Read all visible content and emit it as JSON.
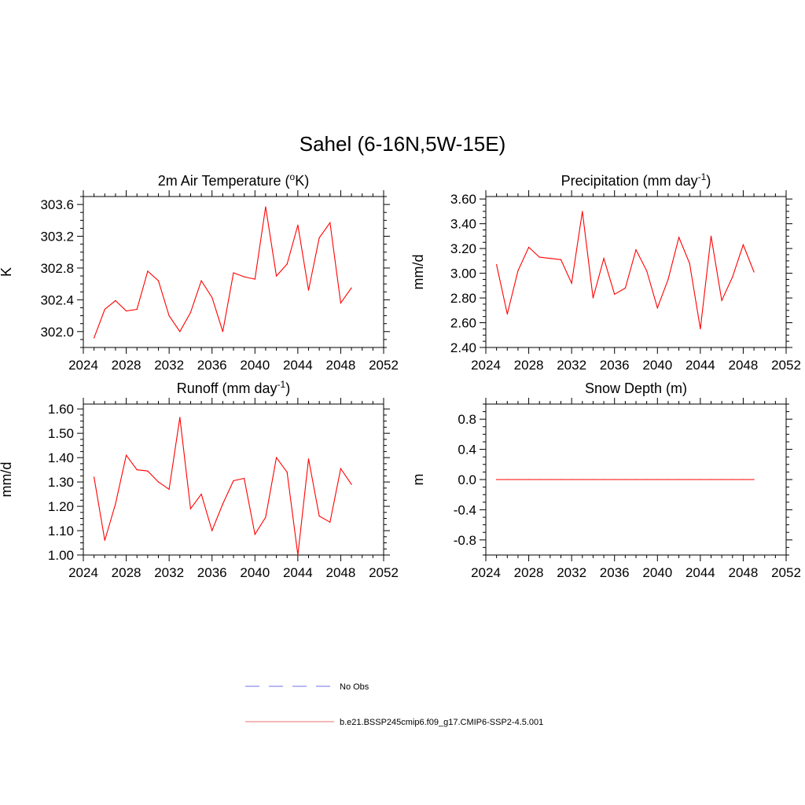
{
  "title": "Sahel (6-16N,5W-15E)",
  "chart_data": [
    {
      "type": "line",
      "title": "2m Air Temperature (°K)",
      "title_parts": {
        "pre": "2m Air Temperature (",
        "sup": "o",
        "post": "K)"
      },
      "ylabel": "K",
      "xlim": [
        2024,
        2052
      ],
      "ylim": [
        301.8,
        303.7
      ],
      "xticks": [
        2024,
        2028,
        2032,
        2036,
        2040,
        2044,
        2048,
        2052
      ],
      "xtick_labels": [
        "2024",
        "2028",
        "2032",
        "2036",
        "2040",
        "2044",
        "2048",
        "2052"
      ],
      "yticks": [
        302.0,
        302.4,
        302.8,
        303.2,
        303.6
      ],
      "ytick_labels": [
        "302.0",
        "302.4",
        "302.8",
        "303.2",
        "303.6"
      ],
      "series": [
        {
          "name": "b.e21.BSSP245cmip6.f09_g17.CMIP6-SSP2-4.5.001",
          "x": [
            2025,
            2026,
            2027,
            2028,
            2029,
            2030,
            2031,
            2032,
            2033,
            2034,
            2035,
            2036,
            2037,
            2038,
            2039,
            2040,
            2041,
            2042,
            2043,
            2044,
            2045,
            2046,
            2047,
            2048,
            2049
          ],
          "values": [
            301.92,
            302.28,
            302.39,
            302.26,
            302.28,
            302.76,
            302.64,
            302.2,
            302.0,
            302.24,
            302.64,
            302.43,
            302.0,
            302.74,
            302.69,
            302.66,
            303.57,
            302.7,
            302.85,
            303.34,
            302.52,
            303.18,
            303.37,
            302.36,
            302.55
          ]
        }
      ]
    },
    {
      "type": "line",
      "title": "Precipitation (mm day-1)",
      "title_parts": {
        "pre": "Precipitation (mm day",
        "sup": "-1",
        "post": ")"
      },
      "ylabel": "mm/d",
      "xlim": [
        2024,
        2052
      ],
      "ylim": [
        2.4,
        3.62
      ],
      "xticks": [
        2024,
        2028,
        2032,
        2036,
        2040,
        2044,
        2048,
        2052
      ],
      "xtick_labels": [
        "2024",
        "2028",
        "2032",
        "2036",
        "2040",
        "2044",
        "2048",
        "2052"
      ],
      "yticks": [
        2.4,
        2.6,
        2.8,
        3.0,
        3.2,
        3.4,
        3.6
      ],
      "ytick_labels": [
        "2.40",
        "2.60",
        "2.80",
        "3.00",
        "3.20",
        "3.40",
        "3.60"
      ],
      "series": [
        {
          "name": "b.e21.BSSP245cmip6.f09_g17.CMIP6-SSP2-4.5.001",
          "x": [
            2025,
            2026,
            2027,
            2028,
            2029,
            2030,
            2031,
            2032,
            2033,
            2034,
            2035,
            2036,
            2037,
            2038,
            2039,
            2040,
            2041,
            2042,
            2043,
            2044,
            2045,
            2046,
            2047,
            2048,
            2049
          ],
          "values": [
            3.07,
            2.67,
            3.02,
            3.21,
            3.13,
            3.12,
            3.11,
            2.92,
            3.5,
            2.8,
            3.12,
            2.83,
            2.88,
            3.19,
            3.02,
            2.72,
            2.95,
            3.29,
            3.08,
            2.55,
            3.3,
            2.78,
            2.97,
            3.23,
            3.01
          ]
        }
      ]
    },
    {
      "type": "line",
      "title": "Runoff (mm day-1)",
      "title_parts": {
        "pre": "Runoff (mm day",
        "sup": "-1",
        "post": ")"
      },
      "ylabel": "mm/d",
      "xlim": [
        2024,
        2052
      ],
      "ylim": [
        1.0,
        1.62
      ],
      "xticks": [
        2024,
        2028,
        2032,
        2036,
        2040,
        2044,
        2048,
        2052
      ],
      "xtick_labels": [
        "2024",
        "2028",
        "2032",
        "2036",
        "2040",
        "2044",
        "2048",
        "2052"
      ],
      "yticks": [
        1.0,
        1.1,
        1.2,
        1.3,
        1.4,
        1.5,
        1.6
      ],
      "ytick_labels": [
        "1.00",
        "1.10",
        "1.20",
        "1.30",
        "1.40",
        "1.50",
        "1.60"
      ],
      "series": [
        {
          "name": "b.e21.BSSP245cmip6.f09_g17.CMIP6-SSP2-4.5.001",
          "x": [
            2025,
            2026,
            2027,
            2028,
            2029,
            2030,
            2031,
            2032,
            2033,
            2034,
            2035,
            2036,
            2037,
            2038,
            2039,
            2040,
            2041,
            2042,
            2043,
            2044,
            2045,
            2046,
            2047,
            2048,
            2049
          ],
          "values": [
            1.32,
            1.06,
            1.21,
            1.41,
            1.35,
            1.345,
            1.3,
            1.27,
            1.565,
            1.19,
            1.25,
            1.1,
            1.21,
            1.305,
            1.315,
            1.085,
            1.155,
            1.4,
            1.34,
            1.0,
            1.395,
            1.16,
            1.135,
            1.355,
            1.29
          ]
        }
      ]
    },
    {
      "type": "line",
      "title": "Snow Depth (m)",
      "title_parts": {
        "pre": "Snow Depth (m)",
        "sup": "",
        "post": ""
      },
      "ylabel": "m",
      "xlim": [
        2024,
        2052
      ],
      "ylim": [
        -1.0,
        1.0
      ],
      "xticks": [
        2024,
        2028,
        2032,
        2036,
        2040,
        2044,
        2048,
        2052
      ],
      "xtick_labels": [
        "2024",
        "2028",
        "2032",
        "2036",
        "2040",
        "2044",
        "2048",
        "2052"
      ],
      "yticks": [
        -0.8,
        -0.4,
        0.0,
        0.4,
        0.8
      ],
      "ytick_labels": [
        "-0.8",
        "-0.4",
        "0.0",
        "0.4",
        "0.8"
      ],
      "series": [
        {
          "name": "b.e21.BSSP245cmip6.f09_g17.CMIP6-SSP2-4.5.001",
          "x": [
            2025,
            2026,
            2027,
            2028,
            2029,
            2030,
            2031,
            2032,
            2033,
            2034,
            2035,
            2036,
            2037,
            2038,
            2039,
            2040,
            2041,
            2042,
            2043,
            2044,
            2045,
            2046,
            2047,
            2048,
            2049
          ],
          "values": [
            0,
            0,
            0,
            0,
            0,
            0,
            0,
            0,
            0,
            0,
            0,
            0,
            0,
            0,
            0,
            0,
            0,
            0,
            0,
            0,
            0,
            0,
            0,
            0,
            0
          ]
        }
      ]
    }
  ],
  "legend": {
    "placement": "bottom-center",
    "items": [
      {
        "label": "No Obs",
        "style": "dashed",
        "color": "#8c8cf0"
      },
      {
        "label": "b.e21.BSSP245cmip6.f09_g17.CMIP6-SSP2-4.5.001",
        "style": "solid",
        "color": "#f08c8c"
      }
    ]
  },
  "colors": {
    "series": "#ff0000",
    "axes": "#000000"
  }
}
